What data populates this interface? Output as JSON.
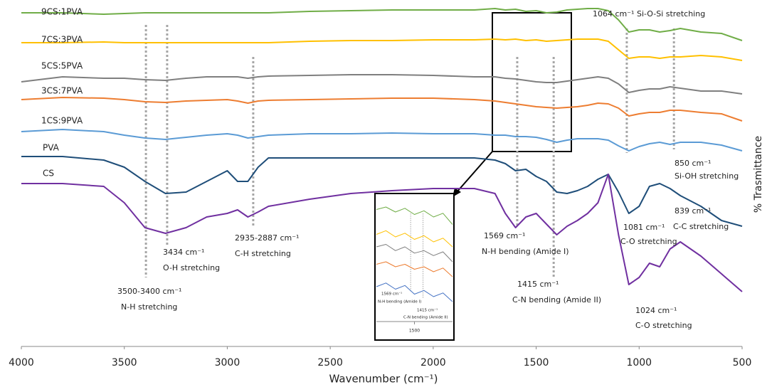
{
  "chart_data": [
    {
      "type": "line",
      "x_label": "Wavenumber (cm⁻¹)",
      "y_label": "% Trasmittance",
      "xlim": [
        4000,
        500
      ],
      "ylim": [
        0,
        482
      ],
      "xticks": [
        4000,
        3500,
        3000,
        2500,
        2000,
        1500,
        1000,
        500
      ],
      "x": [
        4000,
        3800,
        3600,
        3500,
        3400,
        3300,
        3200,
        3100,
        3000,
        2950,
        2900,
        2850,
        2800,
        2600,
        2400,
        2200,
        2000,
        1800,
        1700,
        1650,
        1600,
        1550,
        1500,
        1450,
        1400,
        1350,
        1300,
        1250,
        1200,
        1150,
        1100,
        1050,
        1000,
        950,
        900,
        850,
        800,
        700,
        600,
        500
      ],
      "series": [
        {
          "name": "9CS:1PVA",
          "color": "#70ad47",
          "values": [
            469,
            469,
            467,
            468,
            469,
            469,
            469,
            469,
            469,
            469,
            469,
            469,
            469,
            471,
            472,
            473,
            473,
            473,
            475,
            473,
            474,
            471,
            472,
            469,
            470,
            473,
            474,
            475,
            475,
            472,
            459,
            442,
            445,
            445,
            442,
            444,
            447,
            442,
            440,
            430
          ]
        },
        {
          "name": "7CS:3PVA",
          "color": "#ffc000",
          "values": [
            427,
            427,
            428,
            427,
            427,
            427,
            427,
            427,
            427,
            427,
            427,
            427,
            427,
            429,
            430,
            430,
            431,
            431,
            432,
            431,
            432,
            430,
            431,
            429,
            430,
            431,
            432,
            432,
            432,
            429,
            417,
            405,
            407,
            407,
            405,
            407,
            407,
            409,
            407,
            402
          ]
        },
        {
          "name": "5CS:5PVA",
          "color": "#7f7f7f",
          "values": [
            372,
            379,
            377,
            377,
            375,
            374,
            377,
            379,
            379,
            379,
            377,
            379,
            380,
            381,
            382,
            382,
            381,
            379,
            379,
            377,
            376,
            374,
            372,
            371,
            371,
            373,
            375,
            377,
            379,
            377,
            369,
            357,
            360,
            362,
            362,
            365,
            363,
            359,
            359,
            355
          ]
        },
        {
          "name": "3CS:7PVA",
          "color": "#ed7d31",
          "values": [
            347,
            350,
            349,
            347,
            344,
            343,
            345,
            346,
            347,
            345,
            342,
            345,
            346,
            347,
            348,
            349,
            349,
            347,
            345,
            343,
            341,
            339,
            337,
            336,
            335,
            336,
            337,
            339,
            342,
            341,
            335,
            324,
            327,
            329,
            329,
            332,
            332,
            329,
            327,
            317
          ]
        },
        {
          "name": "1CS:9PVA",
          "color": "#5b9bd5",
          "values": [
            302,
            305,
            302,
            297,
            293,
            291,
            294,
            297,
            299,
            297,
            293,
            295,
            297,
            299,
            299,
            300,
            299,
            299,
            297,
            297,
            295,
            295,
            294,
            291,
            287,
            290,
            292,
            292,
            292,
            290,
            282,
            275,
            281,
            285,
            287,
            284,
            287,
            287,
            283,
            275
          ]
        },
        {
          "name": "PVA",
          "color": "#1f4e79",
          "values": [
            267,
            267,
            262,
            252,
            232,
            215,
            217,
            232,
            247,
            232,
            232,
            252,
            265,
            265,
            265,
            265,
            265,
            265,
            262,
            257,
            247,
            249,
            239,
            232,
            217,
            215,
            219,
            225,
            235,
            242,
            217,
            187,
            197,
            225,
            229,
            222,
            212,
            197,
            177,
            169
          ]
        },
        {
          "name": "CS",
          "color": "#7030a0",
          "values": [
            229,
            229,
            225,
            202,
            167,
            159,
            167,
            182,
            187,
            192,
            182,
            189,
            197,
            207,
            215,
            219,
            222,
            222,
            215,
            187,
            167,
            182,
            187,
            172,
            157,
            169,
            177,
            187,
            202,
            242,
            157,
            87,
            97,
            117,
            112,
            137,
            147,
            127,
            102,
            77
          ]
        }
      ],
      "reference_lines": [
        3395,
        3292,
        2874,
        1592,
        1415,
        1060,
        831
      ],
      "annotations": [
        "1064 cm⁻¹ Si-O-Si stretching",
        "850 cm⁻¹",
        "Si-OH stretching",
        "839 cm⁻¹",
        "C-C stretching",
        "1081 cm⁻¹",
        "C-O stretching",
        "1569 cm⁻¹",
        "N-H bending (Amide I)",
        "1415 cm⁻¹",
        "C-N bending (Amide II)",
        "1024 cm⁻¹",
        "C-O stretching",
        "2935-2887 cm⁻¹",
        "C-H stretching",
        "3434 cm⁻¹",
        "O-H stretching",
        "3500-3400 cm⁻¹",
        "N-H stretching"
      ]
    },
    {
      "type": "line",
      "xlim": [
        1700,
        1300
      ],
      "ylim": [
        0,
        100
      ],
      "xticks": [
        1500
      ],
      "x": [
        1700,
        1650,
        1600,
        1550,
        1500,
        1450,
        1400,
        1350,
        1300
      ],
      "series": [
        {
          "color": "#70ad47",
          "values": [
            90,
            92,
            88,
            91,
            86,
            89,
            84,
            87,
            78
          ]
        },
        {
          "color": "#ffc000",
          "values": [
            70,
            73,
            68,
            71,
            66,
            69,
            64,
            67,
            60
          ]
        },
        {
          "color": "#7f7f7f",
          "values": [
            60,
            62,
            57,
            60,
            55,
            57,
            53,
            56,
            48
          ]
        },
        {
          "color": "#ed7d31",
          "values": [
            46,
            48,
            44,
            46,
            42,
            44,
            40,
            43,
            36
          ]
        },
        {
          "color": "#4472c4",
          "values": [
            28,
            31,
            26,
            29,
            22,
            25,
            20,
            23,
            16
          ]
        }
      ],
      "reference_lines": [
        1520,
        1455
      ],
      "annotations": [
        "1569 cm⁻¹",
        "N-H bending (Amide I)",
        "1415 cm⁻¹",
        "C-N bending (Amide II)"
      ]
    }
  ]
}
